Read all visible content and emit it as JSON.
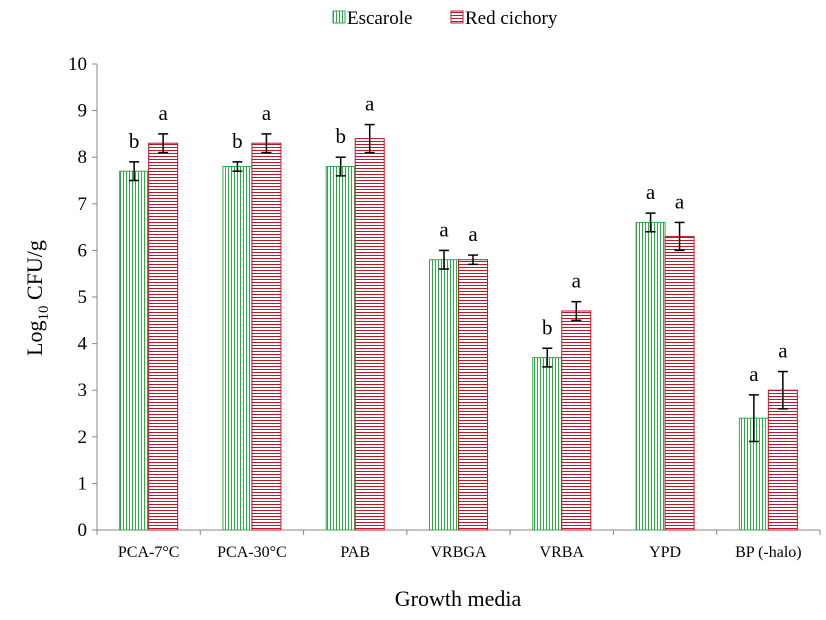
{
  "colors": {
    "escarole": "#2eaa4a",
    "red_cichory": "#c0182a",
    "axis": "#888888",
    "error_bar": "#000000"
  },
  "chart_data": {
    "type": "bar",
    "title": "",
    "xlabel": "Growth media",
    "ylabel_base": "Log",
    "ylabel_sub": "10",
    "ylabel_tail": " CFU/g",
    "ylim": [
      0,
      10
    ],
    "yticks": [
      0,
      1,
      2,
      3,
      4,
      5,
      6,
      7,
      8,
      9,
      10
    ],
    "grid": false,
    "legend_position": "top-center",
    "categories": [
      "PCA-7°C",
      "PCA-30°C",
      "PAB",
      "VRBGA",
      "VRBA",
      "YPD",
      "BP (-halo)"
    ],
    "series": [
      {
        "name": "Escarole",
        "color_key": "escarole",
        "hatch": "vertical",
        "values": [
          7.7,
          7.8,
          7.8,
          5.8,
          3.7,
          6.6,
          2.4
        ],
        "errors": [
          0.2,
          0.1,
          0.2,
          0.2,
          0.2,
          0.2,
          0.5
        ],
        "letters": [
          "b",
          "b",
          "b",
          "a",
          "b",
          "a",
          "a"
        ]
      },
      {
        "name": "Red cichory",
        "color_key": "red_cichory",
        "hatch": "horizontal",
        "values": [
          8.3,
          8.3,
          8.4,
          5.8,
          4.7,
          6.3,
          3.0
        ],
        "errors": [
          0.2,
          0.2,
          0.3,
          0.1,
          0.2,
          0.3,
          0.4
        ],
        "letters": [
          "a",
          "a",
          "a",
          "a",
          "a",
          "a",
          "a"
        ]
      }
    ]
  }
}
